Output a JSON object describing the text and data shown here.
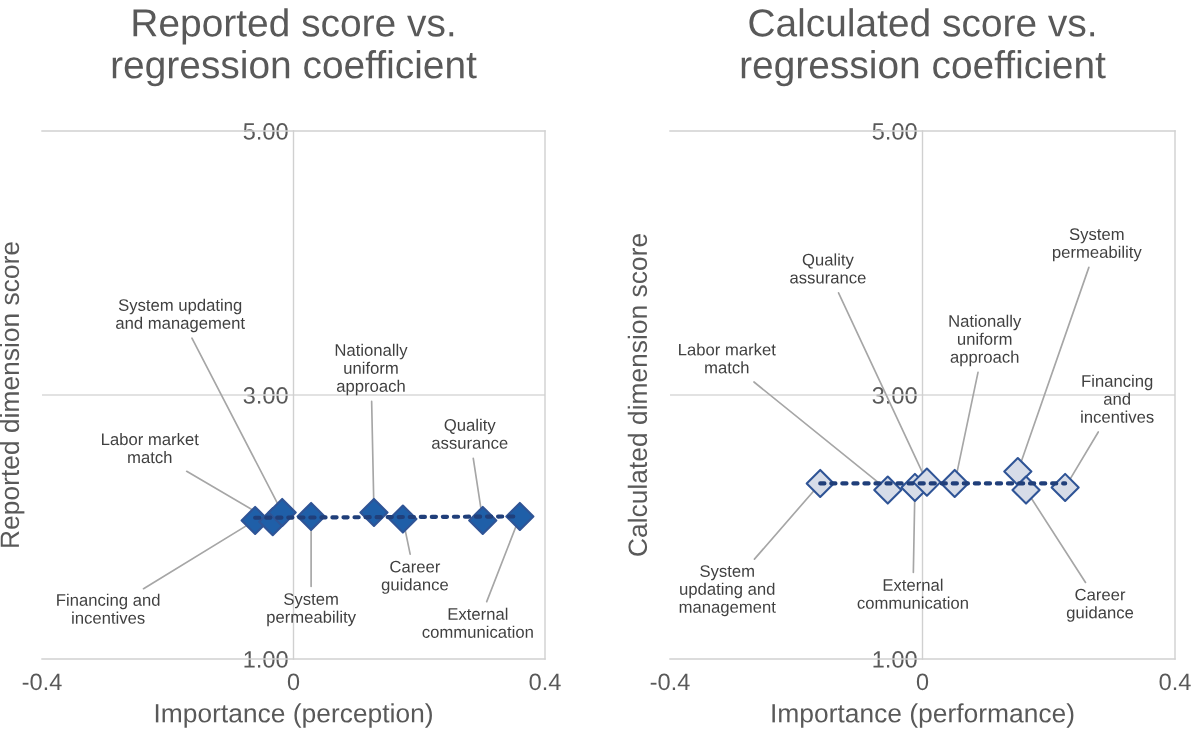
{
  "chart_data": [
    {
      "type": "scatter",
      "title": "Reported score vs.\nregression coefficient",
      "xlabel": "Importance (perception)",
      "ylabel": "Reported dimension score",
      "xlim": [
        -0.4,
        0.4
      ],
      "xticks": [
        -0.4,
        0,
        0.4
      ],
      "ylim": [
        1,
        5
      ],
      "yticks": [
        {
          "value": 1,
          "label": "1.00"
        },
        {
          "value": 3,
          "label": "3.00"
        },
        {
          "value": 5,
          "label": "5.00"
        }
      ],
      "ref_lines": [
        {
          "axis": "y",
          "value": 3,
          "color": "#d9d9d9"
        }
      ],
      "legend": false,
      "series": [
        {
          "color": "#1f5fa8",
          "marker": "diamond",
          "x": [
            -0.061,
            -0.033,
            -0.018,
            0.028,
            0.128,
            0.174,
            0.301,
            0.36
          ],
          "values": [
            2.05,
            2.04,
            2.11,
            2.08,
            2.11,
            2.06,
            2.05,
            2.08
          ]
        },
        {
          "type": "line",
          "color": "#203f7a",
          "marker": "none",
          "line_style": "dotted",
          "x": [
            -0.061,
            0.36
          ],
          "values": [
            2.07,
            2.08
          ]
        }
      ],
      "annotations": [
        {
          "text": "Financing and\nincentives",
          "x": -0.061,
          "y": 2.05
        },
        {
          "text": "Labor market\nmatch",
          "x": -0.033,
          "y": 2.04
        },
        {
          "text": "System updating\nand management",
          "x": -0.018,
          "y": 2.11
        },
        {
          "text": "System\npermeability",
          "x": 0.028,
          "y": 2.08
        },
        {
          "text": "Nationally\nuniform\napproach",
          "x": 0.128,
          "y": 2.11
        },
        {
          "text": "Career\nguidance",
          "x": 0.174,
          "y": 2.06
        },
        {
          "text": "Quality\nassurance",
          "x": 0.301,
          "y": 2.05
        },
        {
          "text": "External\ncommunication",
          "x": 0.36,
          "y": 2.08
        }
      ]
    },
    {
      "type": "scatter",
      "title": "Calculated score vs.\nregression coefficient",
      "xlabel": "Importance (performance)",
      "ylabel": "Calculated dimension score",
      "xlim": [
        -0.4,
        0.4
      ],
      "xticks": [
        -0.4,
        0,
        0.4
      ],
      "ylim": [
        1,
        5
      ],
      "yticks": [
        {
          "value": 1,
          "label": "1.00"
        },
        {
          "value": 3,
          "label": "3.00"
        },
        {
          "value": 5,
          "label": "5.00"
        }
      ],
      "ref_lines": [
        {
          "axis": "y",
          "value": 3,
          "color": "#d9d9d9"
        }
      ],
      "legend": false,
      "series": [
        {
          "color": "#d6dce8",
          "marker": "diamond",
          "x": [
            -0.162,
            -0.055,
            -0.012,
            0.007,
            0.051,
            0.151,
            0.164,
            0.226
          ],
          "values": [
            2.33,
            2.28,
            2.3,
            2.34,
            2.33,
            2.42,
            2.28,
            2.3
          ]
        },
        {
          "type": "line",
          "color": "#203f7a",
          "marker": "none",
          "line_style": "dotted",
          "x": [
            -0.162,
            0.226
          ],
          "values": [
            2.33,
            2.33
          ]
        }
      ],
      "annotations": [
        {
          "text": "System\nupdating and\nmanagement",
          "x": -0.162,
          "y": 2.33
        },
        {
          "text": "Labor market\nmatch",
          "x": -0.055,
          "y": 2.28
        },
        {
          "text": "External\ncommunication",
          "x": -0.012,
          "y": 2.3
        },
        {
          "text": "Quality\nassurance",
          "x": 0.007,
          "y": 2.34
        },
        {
          "text": "Nationally\nuniform\napproach",
          "x": 0.051,
          "y": 2.33
        },
        {
          "text": "System\npermeability",
          "x": 0.151,
          "y": 2.42
        },
        {
          "text": "Career\nguidance",
          "x": 0.164,
          "y": 2.28
        },
        {
          "text": "Financing\nand\nincentives",
          "x": 0.226,
          "y": 2.3
        }
      ]
    }
  ]
}
